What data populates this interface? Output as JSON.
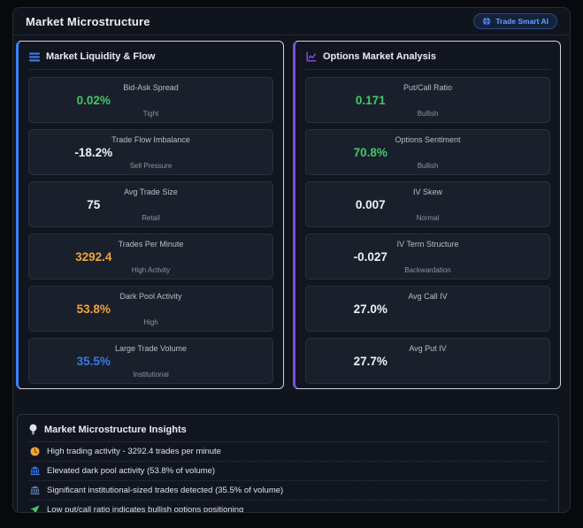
{
  "header": {
    "title": "Market Microstructure",
    "badge": {
      "label": "Trade Smart AI",
      "icon": "globe-icon"
    }
  },
  "panels": [
    {
      "id": "market-liquidity-flow",
      "title": "Market Liquidity & Flow",
      "icon": "list-bars-icon",
      "accent_color": "#3b82f6",
      "metrics": [
        {
          "label": "Bid-Ask Spread",
          "value": "0.02%",
          "value_color": "#42c767",
          "subtitle": "Tight"
        },
        {
          "label": "Trade Flow Imbalance",
          "value": "-18.2%",
          "value_color": "#eef1f5",
          "subtitle": "Sell Pressure"
        },
        {
          "label": "Avg Trade Size",
          "value": "75",
          "value_color": "#eef1f5",
          "subtitle": "Retail"
        },
        {
          "label": "Trades Per Minute",
          "value": "3292.4",
          "value_color": "#eda43c",
          "subtitle": "High Activity"
        },
        {
          "label": "Dark Pool Activity",
          "value": "53.8%",
          "value_color": "#eda43c",
          "subtitle": "High"
        },
        {
          "label": "Large Trade Volume",
          "value": "35.5%",
          "value_color": "#3e77e6",
          "subtitle": "Institutional"
        }
      ]
    },
    {
      "id": "options-market-analysis",
      "title": "Options Market Analysis",
      "icon": "chart-line-icon",
      "accent_color": "#7c4ddd",
      "metrics": [
        {
          "label": "Put/Call Ratio",
          "value": "0.171",
          "value_color": "#42c767",
          "subtitle": "Bullish"
        },
        {
          "label": "Options Sentiment",
          "value": "70.8%",
          "value_color": "#42c767",
          "subtitle": "Bullish"
        },
        {
          "label": "IV Skew",
          "value": "0.007",
          "value_color": "#eef1f5",
          "subtitle": "Normal"
        },
        {
          "label": "IV Term Structure",
          "value": "-0.027",
          "value_color": "#eef1f5",
          "subtitle": "Backwardation"
        },
        {
          "label": "Avg Call IV",
          "value": "27.0%",
          "value_color": "#eef1f5",
          "subtitle": ""
        },
        {
          "label": "Avg Put IV",
          "value": "27.7%",
          "value_color": "#eef1f5",
          "subtitle": ""
        }
      ]
    }
  ],
  "insights": {
    "title": "Market Microstructure Insights",
    "icon": "lightbulb-icon",
    "items": [
      {
        "icon": "clock-icon",
        "text": "High trading activity - 3292.4 trades per minute"
      },
      {
        "icon": "bank-icon",
        "text": "Elevated dark pool activity (53.8% of volume)"
      },
      {
        "icon": "institution-icon",
        "text": "Significant institutional-sized trades detected (35.5% of volume)"
      },
      {
        "icon": "dart-icon",
        "text": "Low put/call ratio indicates bullish options positioning"
      }
    ]
  }
}
